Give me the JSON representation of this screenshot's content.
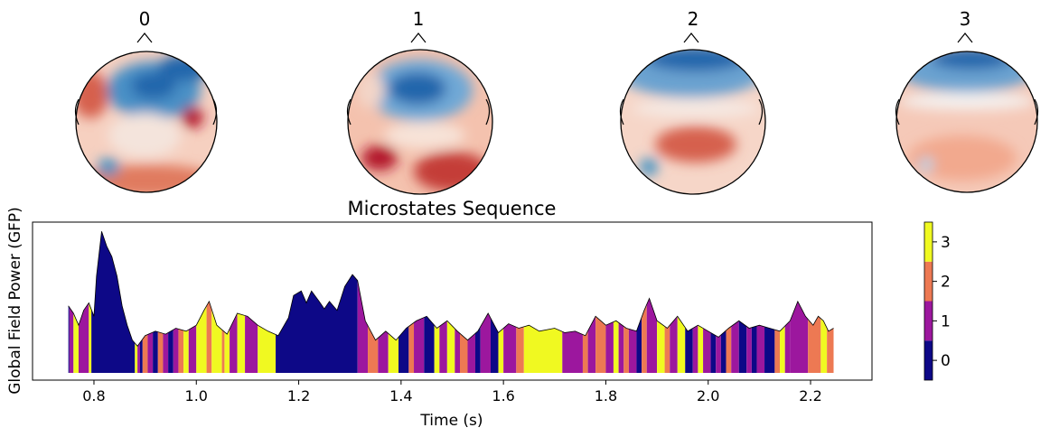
{
  "topomaps": [
    {
      "label": "0"
    },
    {
      "label": "1"
    },
    {
      "label": "2"
    },
    {
      "label": "3"
    }
  ],
  "chart_data": {
    "type": "area",
    "title": "Microstates Sequence",
    "xlabel": "Time (s)",
    "ylabel": "Global Field Power (GFP)",
    "xlim": [
      0.68,
      2.32
    ],
    "xticks": [
      "0.8",
      "1.0",
      "1.2",
      "1.4",
      "1.6",
      "1.8",
      "2.0",
      "2.2"
    ],
    "colorbar": {
      "ticks": [
        "0",
        "1",
        "2",
        "3"
      ]
    },
    "state_colors": [
      "#0d0887",
      "#9c179e",
      "#ed7953",
      "#f0f921"
    ],
    "gfp_points": [
      [
        0.75,
        0.45
      ],
      [
        0.76,
        0.4
      ],
      [
        0.77,
        0.32
      ],
      [
        0.78,
        0.42
      ],
      [
        0.79,
        0.47
      ],
      [
        0.8,
        0.38
      ],
      [
        0.805,
        0.65
      ],
      [
        0.815,
        0.95
      ],
      [
        0.825,
        0.85
      ],
      [
        0.835,
        0.78
      ],
      [
        0.845,
        0.65
      ],
      [
        0.855,
        0.45
      ],
      [
        0.865,
        0.32
      ],
      [
        0.875,
        0.22
      ],
      [
        0.885,
        0.18
      ],
      [
        0.9,
        0.25
      ],
      [
        0.92,
        0.28
      ],
      [
        0.94,
        0.26
      ],
      [
        0.96,
        0.3
      ],
      [
        0.98,
        0.28
      ],
      [
        1.0,
        0.32
      ],
      [
        1.015,
        0.42
      ],
      [
        1.025,
        0.48
      ],
      [
        1.04,
        0.32
      ],
      [
        1.06,
        0.26
      ],
      [
        1.08,
        0.4
      ],
      [
        1.1,
        0.38
      ],
      [
        1.12,
        0.32
      ],
      [
        1.14,
        0.28
      ],
      [
        1.16,
        0.25
      ],
      [
        1.18,
        0.37
      ],
      [
        1.19,
        0.52
      ],
      [
        1.205,
        0.55
      ],
      [
        1.215,
        0.47
      ],
      [
        1.225,
        0.55
      ],
      [
        1.24,
        0.48
      ],
      [
        1.25,
        0.43
      ],
      [
        1.26,
        0.48
      ],
      [
        1.275,
        0.42
      ],
      [
        1.29,
        0.58
      ],
      [
        1.305,
        0.66
      ],
      [
        1.315,
        0.62
      ],
      [
        1.33,
        0.35
      ],
      [
        1.35,
        0.22
      ],
      [
        1.37,
        0.28
      ],
      [
        1.39,
        0.22
      ],
      [
        1.41,
        0.3
      ],
      [
        1.43,
        0.35
      ],
      [
        1.45,
        0.38
      ],
      [
        1.47,
        0.3
      ],
      [
        1.49,
        0.35
      ],
      [
        1.51,
        0.28
      ],
      [
        1.53,
        0.22
      ],
      [
        1.55,
        0.28
      ],
      [
        1.57,
        0.4
      ],
      [
        1.59,
        0.27
      ],
      [
        1.61,
        0.33
      ],
      [
        1.63,
        0.3
      ],
      [
        1.65,
        0.32
      ],
      [
        1.67,
        0.28
      ],
      [
        1.7,
        0.3
      ],
      [
        1.72,
        0.27
      ],
      [
        1.74,
        0.28
      ],
      [
        1.76,
        0.25
      ],
      [
        1.78,
        0.38
      ],
      [
        1.8,
        0.32
      ],
      [
        1.82,
        0.35
      ],
      [
        1.84,
        0.3
      ],
      [
        1.86,
        0.28
      ],
      [
        1.875,
        0.42
      ],
      [
        1.885,
        0.5
      ],
      [
        1.9,
        0.35
      ],
      [
        1.92,
        0.3
      ],
      [
        1.94,
        0.38
      ],
      [
        1.96,
        0.28
      ],
      [
        1.98,
        0.32
      ],
      [
        2.0,
        0.28
      ],
      [
        2.02,
        0.24
      ],
      [
        2.04,
        0.3
      ],
      [
        2.06,
        0.35
      ],
      [
        2.08,
        0.3
      ],
      [
        2.1,
        0.32
      ],
      [
        2.12,
        0.3
      ],
      [
        2.14,
        0.28
      ],
      [
        2.16,
        0.35
      ],
      [
        2.175,
        0.48
      ],
      [
        2.19,
        0.38
      ],
      [
        2.205,
        0.32
      ],
      [
        2.215,
        0.38
      ],
      [
        2.225,
        0.35
      ],
      [
        2.235,
        0.28
      ],
      [
        2.245,
        0.3
      ]
    ],
    "states": [
      [
        0.75,
        0.752,
        0
      ],
      [
        0.752,
        0.76,
        1
      ],
      [
        0.76,
        0.77,
        3
      ],
      [
        0.77,
        0.79,
        1
      ],
      [
        0.79,
        0.795,
        3
      ],
      [
        0.795,
        0.88,
        0
      ],
      [
        0.88,
        0.885,
        3
      ],
      [
        0.885,
        0.89,
        1
      ],
      [
        0.89,
        0.895,
        0
      ],
      [
        0.895,
        0.905,
        2
      ],
      [
        0.905,
        0.915,
        1
      ],
      [
        0.915,
        0.925,
        0
      ],
      [
        0.925,
        0.935,
        2
      ],
      [
        0.935,
        0.945,
        1
      ],
      [
        0.945,
        0.955,
        0
      ],
      [
        0.955,
        0.965,
        1
      ],
      [
        0.965,
        0.975,
        2
      ],
      [
        0.975,
        0.985,
        3
      ],
      [
        0.985,
        1.0,
        1
      ],
      [
        1.0,
        1.02,
        3
      ],
      [
        1.02,
        1.03,
        2
      ],
      [
        1.03,
        1.05,
        3
      ],
      [
        1.05,
        1.055,
        2
      ],
      [
        1.055,
        1.065,
        3
      ],
      [
        1.065,
        1.08,
        1
      ],
      [
        1.08,
        1.095,
        3
      ],
      [
        1.095,
        1.12,
        1
      ],
      [
        1.12,
        1.155,
        3
      ],
      [
        1.155,
        1.315,
        0
      ],
      [
        1.315,
        1.335,
        1
      ],
      [
        1.335,
        1.355,
        2
      ],
      [
        1.355,
        1.375,
        1
      ],
      [
        1.375,
        1.395,
        3
      ],
      [
        1.395,
        1.415,
        0
      ],
      [
        1.415,
        1.425,
        2
      ],
      [
        1.425,
        1.445,
        1
      ],
      [
        1.445,
        1.465,
        0
      ],
      [
        1.465,
        1.475,
        3
      ],
      [
        1.475,
        1.49,
        1
      ],
      [
        1.49,
        1.505,
        3
      ],
      [
        1.505,
        1.515,
        1
      ],
      [
        1.515,
        1.53,
        2
      ],
      [
        1.53,
        1.545,
        1
      ],
      [
        1.545,
        1.555,
        0
      ],
      [
        1.555,
        1.575,
        1
      ],
      [
        1.575,
        1.59,
        0
      ],
      [
        1.59,
        1.6,
        3
      ],
      [
        1.6,
        1.625,
        1
      ],
      [
        1.625,
        1.64,
        2
      ],
      [
        1.64,
        1.65,
        3
      ],
      [
        1.65,
        1.715,
        3
      ],
      [
        1.715,
        1.755,
        1
      ],
      [
        1.755,
        1.765,
        2
      ],
      [
        1.765,
        1.78,
        1
      ],
      [
        1.78,
        1.8,
        2
      ],
      [
        1.8,
        1.815,
        1
      ],
      [
        1.815,
        1.825,
        3
      ],
      [
        1.825,
        1.835,
        1
      ],
      [
        1.835,
        1.845,
        2
      ],
      [
        1.845,
        1.86,
        1
      ],
      [
        1.86,
        1.87,
        0
      ],
      [
        1.87,
        1.88,
        2
      ],
      [
        1.88,
        1.9,
        1
      ],
      [
        1.9,
        1.915,
        3
      ],
      [
        1.915,
        1.925,
        2
      ],
      [
        1.925,
        1.94,
        1
      ],
      [
        1.94,
        1.955,
        3
      ],
      [
        1.955,
        1.97,
        0
      ],
      [
        1.97,
        1.98,
        1
      ],
      [
        1.98,
        1.99,
        3
      ],
      [
        1.99,
        2.005,
        1
      ],
      [
        2.005,
        2.015,
        0
      ],
      [
        2.015,
        2.025,
        1
      ],
      [
        2.025,
        2.035,
        0
      ],
      [
        2.035,
        2.045,
        2
      ],
      [
        2.045,
        2.06,
        1
      ],
      [
        2.06,
        2.075,
        0
      ],
      [
        2.075,
        2.085,
        1
      ],
      [
        2.085,
        2.095,
        0
      ],
      [
        2.095,
        2.11,
        1
      ],
      [
        2.11,
        2.13,
        0
      ],
      [
        2.13,
        2.14,
        2
      ],
      [
        2.14,
        2.15,
        3
      ],
      [
        2.15,
        2.16,
        1
      ],
      [
        2.16,
        2.195,
        1
      ],
      [
        2.195,
        2.22,
        2
      ],
      [
        2.22,
        2.232,
        3
      ],
      [
        2.232,
        2.245,
        2
      ]
    ]
  }
}
